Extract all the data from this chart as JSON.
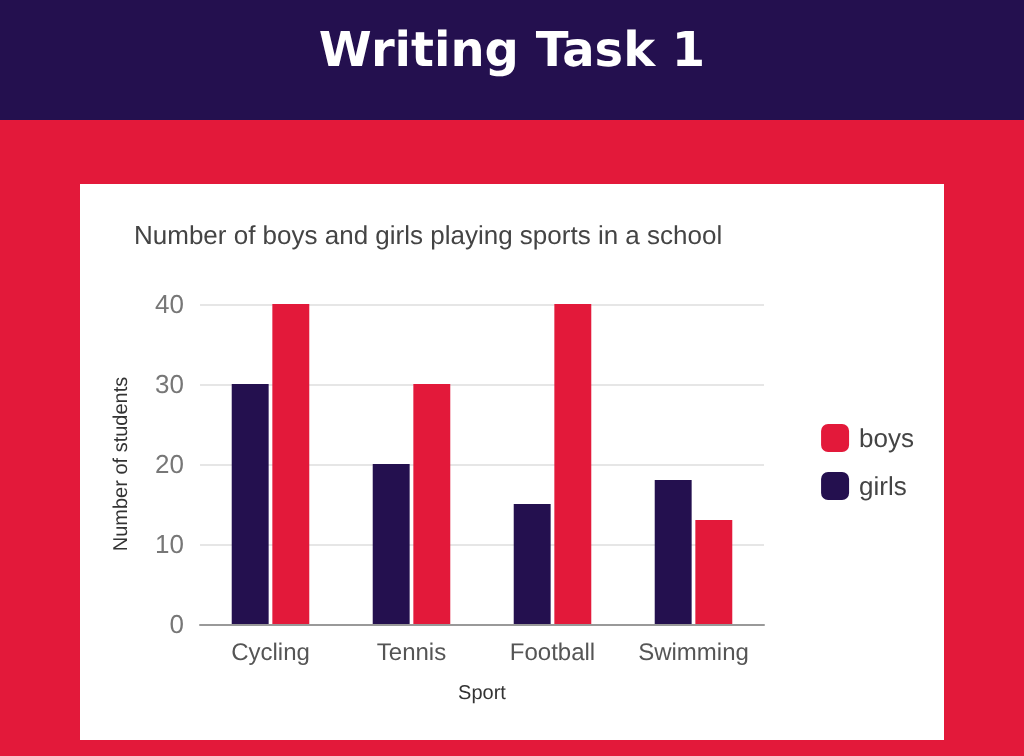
{
  "chart_data": {
    "type": "bar",
    "title": "Writing Task 1",
    "subtitle": "Number of boys and girls playing sports in a school",
    "xlabel": "Sport",
    "ylabel": "Number of students",
    "categories": [
      "Cycling",
      "Tennis",
      "Football",
      "Swimming"
    ],
    "series": [
      {
        "name": "girls",
        "color": "#24104f",
        "values": [
          30,
          20,
          15,
          18
        ]
      },
      {
        "name": "boys",
        "color": "#e3193a",
        "values": [
          40,
          30,
          40,
          13
        ]
      }
    ],
    "ylim": [
      0,
      40
    ],
    "yticks": [
      0,
      10,
      20,
      30,
      40
    ],
    "grid": "y",
    "legend": "right"
  }
}
